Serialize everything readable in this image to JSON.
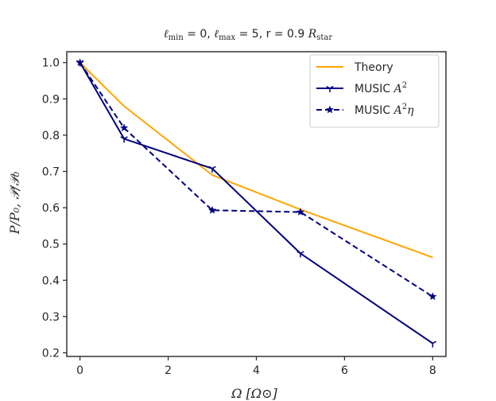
{
  "chart_data": {
    "type": "line",
    "title": "ℓmin = 0, ℓmax = 5, r = 0.9 Rstar",
    "title_parts": {
      "lmin": "ℓ",
      "lmin_sub": "min",
      "eq1": " = 0, ",
      "lmax": "ℓ",
      "lmax_sub": "max",
      "eq2": " = 5, r = 0.9 ",
      "r": "R",
      "r_sub": "star"
    },
    "xlabel": "Ω [Ω⊙]",
    "ylabel": "P/P₀, 𝒫/𝒫₀",
    "xlim": [
      -0.3,
      8.3
    ],
    "ylim": [
      0.19,
      1.03
    ],
    "xticks": [
      0,
      2,
      4,
      6,
      8
    ],
    "yticks": [
      0.2,
      0.3,
      0.4,
      0.5,
      0.6,
      0.7,
      0.8,
      0.9,
      1.0
    ],
    "xtick_labels": [
      "0",
      "2",
      "4",
      "6",
      "8"
    ],
    "ytick_labels": [
      "0.2",
      "0.3",
      "0.4",
      "0.5",
      "0.6",
      "0.7",
      "0.8",
      "0.9",
      "1.0"
    ],
    "legend_position": "upper-right",
    "series": [
      {
        "name": "Theory",
        "label": "Theory",
        "color": "#FFA500",
        "style": "solid",
        "marker": "none",
        "x": [
          0,
          1,
          3,
          5,
          8
        ],
        "y": [
          1.0,
          0.88,
          0.69,
          0.595,
          0.463
        ]
      },
      {
        "name": "MUSIC A2",
        "label": "MUSIC ",
        "math": "A",
        "sup": "2",
        "color": "#000080",
        "style": "solid",
        "marker": "tri",
        "x": [
          0,
          1,
          3,
          5,
          8
        ],
        "y": [
          1.0,
          0.79,
          0.708,
          0.474,
          0.226
        ]
      },
      {
        "name": "MUSIC A2eta",
        "label": "MUSIC ",
        "math": "A",
        "sup": "2",
        "math2": "η",
        "color": "#000080",
        "style": "dashed",
        "marker": "star",
        "x": [
          0,
          1,
          3,
          5,
          8
        ],
        "y": [
          1.0,
          0.82,
          0.593,
          0.588,
          0.355
        ]
      }
    ]
  }
}
